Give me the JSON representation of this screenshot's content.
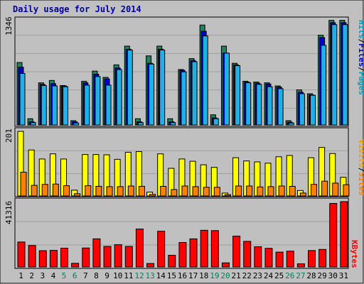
{
  "chart_data": {
    "type": "bar",
    "title": "Daily usage for July 2014",
    "colors": {
      "background": "#C0C0C0",
      "title": "#0000A0",
      "hits": "#00A0C0",
      "hits_fill": "#20B0E8",
      "files": "#0000D0",
      "pages": "#208060",
      "visits": "#F0A000",
      "sites": "#FF8000",
      "kbytes": "#FF0000",
      "weekend_label": "#00805C"
    },
    "categories": [
      "1",
      "2",
      "3",
      "4",
      "5",
      "6",
      "7",
      "8",
      "9",
      "10",
      "11",
      "12",
      "13",
      "14",
      "15",
      "16",
      "17",
      "18",
      "19",
      "20",
      "21",
      "22",
      "23",
      "24",
      "25",
      "26",
      "27",
      "28",
      "29",
      "30",
      "31"
    ],
    "weekend_days": [
      "5",
      "6",
      "12",
      "13",
      "19",
      "20",
      "26",
      "27"
    ],
    "panels": {
      "hits": {
        "max_label": "1346",
        "legend": [
          "Pages",
          "/",
          "Files",
          "/",
          "Hits"
        ],
        "ylim": [
          0,
          1346
        ],
        "series": [
          {
            "name": "Pages",
            "values": [
              800,
              80,
              540,
              570,
              505,
              55,
              560,
              690,
              610,
              770,
              1010,
              80,
              885,
              1010,
              80,
              710,
              850,
              1280,
              130,
              1010,
              790,
              560,
              550,
              540,
              500,
              55,
              450,
              400,
              1150,
              1340,
              1340
            ]
          },
          {
            "name": "Files",
            "values": [
              740,
              40,
              520,
              530,
              500,
              40,
              540,
              650,
              590,
              730,
              970,
              40,
              790,
              970,
              40,
              700,
              825,
              1200,
              90,
              920,
              770,
              550,
              535,
              525,
              485,
              35,
              420,
              385,
              1120,
              1310,
              1310
            ]
          },
          {
            "name": "Hits",
            "values": [
              660,
              30,
              505,
              500,
              490,
              25,
              510,
              620,
              510,
              710,
              960,
              30,
              780,
              960,
              30,
              680,
              810,
              1140,
              80,
              920,
              760,
              540,
              520,
              490,
              465,
              25,
              400,
              380,
              1020,
              1285,
              1285
            ]
          }
        ]
      },
      "visits": {
        "max_label": "201",
        "legend": [
          "Sites",
          "/",
          "Visits"
        ],
        "ylim": [
          0,
          201
        ],
        "series": [
          {
            "name": "Visits",
            "values": [
              201,
              143,
              115,
              131,
              115,
              18,
              129,
              129,
              128,
              114,
              136,
              138,
              12,
              131,
              86,
              115,
              108,
              97,
              89,
              9,
              119,
              109,
              106,
              102,
              122,
              126,
              17,
              119,
              151,
              132,
              58
            ]
          },
          {
            "name": "Sites",
            "values": [
              74,
              33,
              36,
              37,
              32,
              7,
              32,
              30,
              29,
              29,
              31,
              30,
              5,
              30,
              20,
              31,
              29,
              27,
              27,
              4,
              31,
              31,
              28,
              29,
              31,
              30,
              9,
              36,
              46,
              40,
              35
            ]
          }
        ]
      },
      "kbytes": {
        "max_label": "41316",
        "legend": [
          "KBytes"
        ],
        "ylim": [
          0,
          41316
        ],
        "series": [
          {
            "name": "KBytes",
            "values": [
              15800,
              13600,
              10300,
              10500,
              11900,
              2300,
              12000,
              17800,
              13000,
              14100,
              13000,
              24000,
              2200,
              22600,
              7400,
              15500,
              17800,
              23200,
              23000,
              2600,
              19500,
              16200,
              12800,
              11800,
              9400,
              10000,
              2000,
              10400,
              11100,
              40200,
              41316
            ]
          }
        ]
      }
    }
  }
}
